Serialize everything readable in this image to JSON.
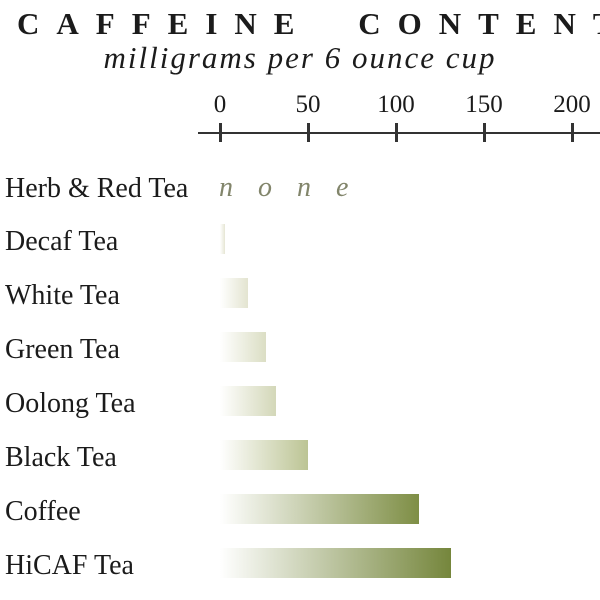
{
  "title": "CAFFEINE CONTENT",
  "subtitle": "milligrams per 6 ounce cup",
  "chart_data": {
    "type": "bar",
    "orientation": "horizontal",
    "title": "CAFFEINE CONTENT",
    "subtitle": "milligrams per 6 ounce cup",
    "xlabel": "milligrams per 6 ounce cup",
    "ylabel": "",
    "axis": {
      "position": "top",
      "min": 0,
      "max": 200,
      "tick_values": [
        0,
        50,
        100,
        150,
        200
      ],
      "tick_labels": [
        "0",
        "50",
        "100",
        "150",
        "200"
      ],
      "grid": false,
      "color": "#333333"
    },
    "categories": [
      "Herb & Red Tea",
      "Decaf Tea",
      "White Tea",
      "Green Tea",
      "Oolong Tea",
      "Black Tea",
      "Coffee",
      "HiCAF Tea"
    ],
    "values": [
      0,
      3,
      16,
      26,
      32,
      50,
      113,
      131
    ],
    "annotations": [
      {
        "category": "Herb & Red Tea",
        "text": "none"
      }
    ],
    "legend": null,
    "style": {
      "bar_gradient_start": "#ffffff",
      "bar_end_colors": [
        "#ffffff",
        "#e6e6d4",
        "#e3e4d0",
        "#dbdec4",
        "#d3d7b8",
        "#bcc494",
        "#7e8e45",
        "#75863c"
      ],
      "text_color": "#1b1b1b",
      "none_text_color": "#82856b",
      "axis_color": "#333333"
    }
  }
}
